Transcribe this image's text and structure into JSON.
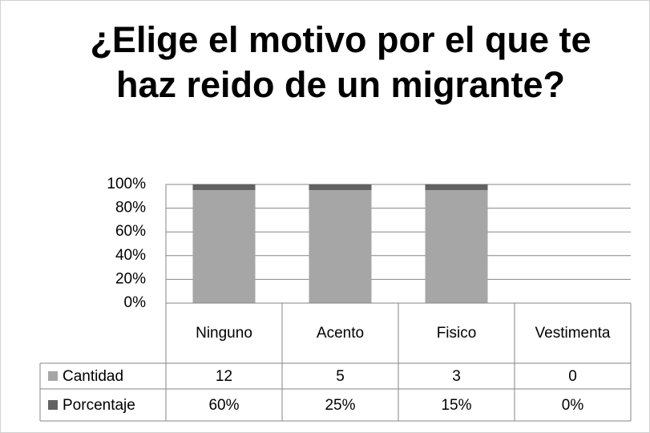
{
  "chart_data": {
    "type": "stacked_percent_bar",
    "title": "¿Elige el motivo por el que te haz reido de un migrante?",
    "categories": [
      "Ninguno",
      "Acento",
      "Fisico",
      "Vestimenta"
    ],
    "series": [
      {
        "name": "Cantidad",
        "color": "#a6a6a6",
        "values": [
          12,
          5,
          3,
          0
        ]
      },
      {
        "name": "Porcentaje",
        "color": "#626262",
        "values": [
          0.6,
          0.25,
          0.15,
          0
        ],
        "value_labels": [
          "60%",
          "25%",
          "15%",
          "0%"
        ]
      }
    ],
    "ylim": [
      0,
      100
    ],
    "yticks": [
      {
        "value": 0,
        "label": "0%"
      },
      {
        "value": 20,
        "label": "20%"
      },
      {
        "value": 40,
        "label": "40%"
      },
      {
        "value": 60,
        "label": "60%"
      },
      {
        "value": 80,
        "label": "80%"
      },
      {
        "value": 100,
        "label": "100%"
      }
    ],
    "grid": true
  }
}
